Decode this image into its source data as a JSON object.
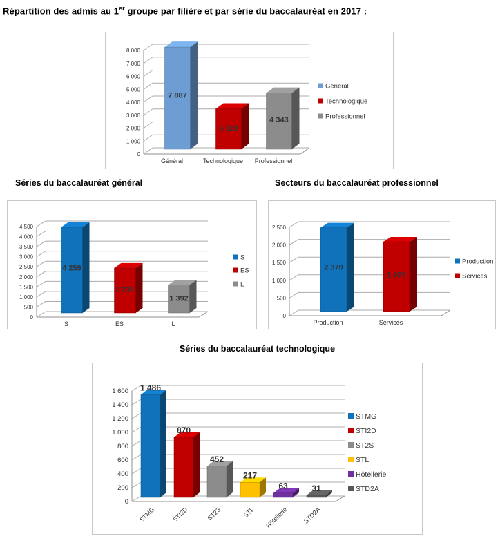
{
  "title": {
    "prefix": "Répartition des admis au 1",
    "superscript": "er",
    "suffix": " groupe par filière et par série du baccalauréat en 2017 :"
  },
  "chart_data": [
    {
      "type": "bar",
      "style": "3d",
      "title": "",
      "categories": [
        "Général",
        "Technologique",
        "Professionnel"
      ],
      "values": [
        7887,
        3119,
        4343
      ],
      "value_labels": [
        "7 887",
        "3 119",
        "4 343"
      ],
      "colors": [
        "#6D9DD3",
        "#C00000",
        "#8C8C8C"
      ],
      "legend": [
        "Général",
        "Technologique",
        "Professionnel"
      ],
      "legend_position": "right",
      "ylim": [
        0,
        8000
      ],
      "yticks": [
        "0",
        "1 000",
        "2 000",
        "3 000",
        "4 000",
        "5 000",
        "6 000",
        "7 000",
        "8 000"
      ],
      "grid": true,
      "value_label_position": "inside-center"
    },
    {
      "type": "bar",
      "style": "3d",
      "title": "Séries du baccalauréat général",
      "categories": [
        "S",
        "ES",
        "L"
      ],
      "values": [
        4259,
        2236,
        1392
      ],
      "value_labels": [
        "4 259",
        "2 236",
        "1 392"
      ],
      "colors": [
        "#1072BA",
        "#C00000",
        "#8C8C8C"
      ],
      "legend": [
        "S",
        "ES",
        "L"
      ],
      "legend_position": "right",
      "ylim": [
        0,
        4500
      ],
      "yticks": [
        "0",
        "500",
        "1 000",
        "1 500",
        "2 000",
        "2 500",
        "3 000",
        "3 500",
        "4 000",
        "4 500"
      ],
      "grid": true,
      "value_label_position": "inside-center"
    },
    {
      "type": "bar",
      "style": "3d",
      "title": "Secteurs du baccalauréat professionnel",
      "categories": [
        "Production",
        "Services"
      ],
      "values": [
        2370,
        1973
      ],
      "value_labels": [
        "2 370",
        "1 973"
      ],
      "colors": [
        "#1072BA",
        "#C00000"
      ],
      "legend": [
        "Production",
        "Services"
      ],
      "legend_position": "right",
      "ylim": [
        0,
        2500
      ],
      "yticks": [
        "0",
        "500",
        "1 000",
        "1 500",
        "2 000",
        "2 500"
      ],
      "grid": true,
      "value_label_position": "inside-center"
    },
    {
      "type": "bar",
      "style": "3d",
      "title": "Séries du baccalauréat technologique",
      "categories": [
        "STMG",
        "STI2D",
        "ST2S",
        "STL",
        "Hôtellerie",
        "STD2A"
      ],
      "values": [
        1486,
        870,
        452,
        217,
        63,
        31
      ],
      "value_labels": [
        "1 486",
        "870",
        "452",
        "217",
        "63",
        "31"
      ],
      "colors": [
        "#1072BA",
        "#C00000",
        "#8C8C8C",
        "#FFC000",
        "#7030A0",
        "#595959"
      ],
      "legend": [
        "STMG",
        "STI2D",
        "ST2S",
        "STL",
        "Hôtellerie",
        "STD2A"
      ],
      "legend_position": "right",
      "ylim": [
        0,
        1600
      ],
      "yticks": [
        "0",
        "200",
        "400",
        "600",
        "800",
        "1 000",
        "1 200",
        "1 400",
        "1 600"
      ],
      "grid": true,
      "value_label_position": "above"
    }
  ]
}
